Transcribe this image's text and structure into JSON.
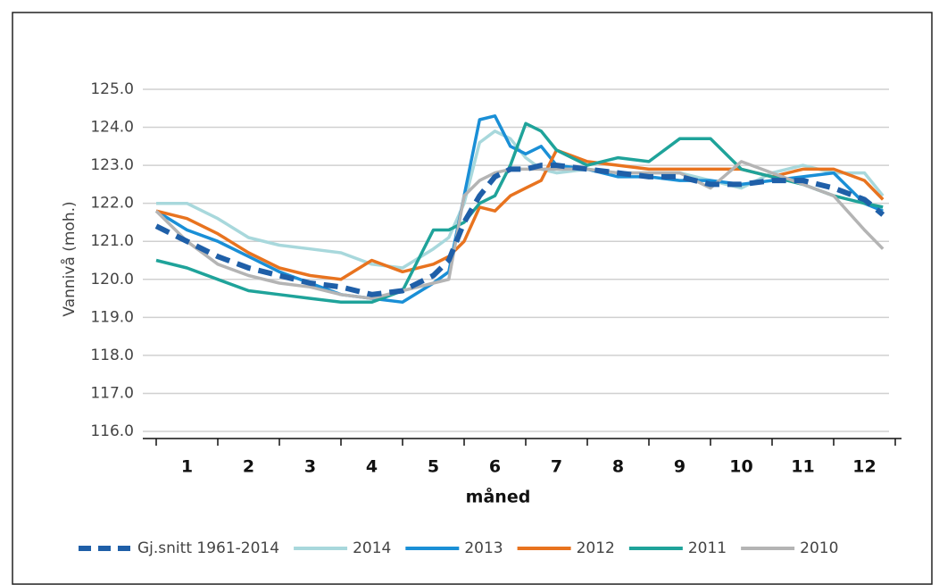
{
  "chart_data": {
    "type": "line",
    "ylabel": "Vannivå (moh.)",
    "xlabel": "måned",
    "x": [
      0.5,
      1,
      1.5,
      2,
      2.5,
      3,
      3.5,
      4,
      4.5,
      5,
      5.25,
      5.5,
      5.75,
      6,
      6.25,
      6.5,
      6.75,
      7,
      7.5,
      8,
      8.5,
      9,
      9.5,
      10,
      10.5,
      11,
      11.5,
      12,
      12.3
    ],
    "series": [
      {
        "name": "Gj.snitt 1961-2014",
        "color": "#1f5fa8",
        "line_style": "dashed",
        "values": [
          121.4,
          121.0,
          120.6,
          120.3,
          120.1,
          119.9,
          119.8,
          119.6,
          119.7,
          120.1,
          120.5,
          121.5,
          122.2,
          122.7,
          122.9,
          122.9,
          123.0,
          123.0,
          122.9,
          122.8,
          122.7,
          122.7,
          122.5,
          122.5,
          122.6,
          122.6,
          122.4,
          122.1,
          121.7
        ]
      },
      {
        "name": "2014",
        "color": "#a8d8dc",
        "values": [
          122.0,
          122.0,
          121.6,
          121.1,
          120.9,
          120.8,
          120.7,
          120.4,
          120.3,
          120.8,
          121.1,
          122.0,
          123.6,
          123.9,
          123.7,
          123.2,
          122.9,
          122.8,
          122.9,
          122.8,
          122.8,
          122.8,
          122.6,
          122.4,
          122.8,
          123.0,
          122.8,
          122.8,
          122.2
        ]
      },
      {
        "name": "2013",
        "color": "#1a8fd6",
        "values": [
          121.8,
          121.3,
          121.0,
          120.6,
          120.2,
          119.9,
          119.6,
          119.5,
          119.4,
          119.9,
          120.2,
          122.2,
          124.2,
          124.3,
          123.5,
          123.3,
          123.5,
          123.0,
          122.9,
          122.7,
          122.7,
          122.6,
          122.6,
          122.5,
          122.6,
          122.7,
          122.8,
          122.0,
          121.8
        ]
      },
      {
        "name": "2012",
        "color": "#e8731f",
        "values": [
          121.8,
          121.6,
          121.2,
          120.7,
          120.3,
          120.1,
          120.0,
          120.5,
          120.2,
          120.4,
          120.6,
          121.0,
          121.9,
          121.8,
          122.2,
          122.4,
          122.6,
          123.4,
          123.1,
          123.0,
          122.9,
          122.9,
          122.9,
          122.9,
          122.7,
          122.9,
          122.9,
          122.6,
          122.1
        ]
      },
      {
        "name": "2011",
        "color": "#1fa39a",
        "values": [
          120.5,
          120.3,
          120.0,
          119.7,
          119.6,
          119.5,
          119.4,
          119.4,
          119.7,
          121.3,
          121.3,
          121.5,
          122.0,
          122.2,
          123.0,
          124.1,
          123.9,
          123.4,
          123.0,
          123.2,
          123.1,
          123.7,
          123.7,
          122.9,
          122.7,
          122.5,
          122.2,
          122.0,
          121.9
        ]
      },
      {
        "name": "2010",
        "color": "#b4b4b4",
        "values": [
          121.8,
          121.0,
          120.4,
          120.1,
          119.9,
          119.8,
          119.6,
          119.5,
          119.7,
          119.9,
          120.0,
          122.2,
          122.6,
          122.8,
          122.9,
          122.9,
          122.9,
          122.9,
          122.9,
          122.8,
          122.8,
          122.8,
          122.4,
          123.1,
          122.8,
          122.5,
          122.2,
          121.3,
          120.8
        ]
      }
    ],
    "xlim": [
      0.5,
      12.5
    ],
    "xticks": [
      1,
      2,
      3,
      4,
      5,
      6,
      7,
      8,
      9,
      10,
      11,
      12
    ],
    "ylim": [
      116,
      125
    ],
    "yticks": [
      {
        "value": 116,
        "label": "116.0"
      },
      {
        "value": 117,
        "label": "117.0"
      },
      {
        "value": 118,
        "label": "118.0"
      },
      {
        "value": 119,
        "label": "119.0"
      },
      {
        "value": 120,
        "label": "120.0"
      },
      {
        "value": 121,
        "label": "121.0"
      },
      {
        "value": 122,
        "label": "122.0"
      },
      {
        "value": 123,
        "label": "123.0"
      },
      {
        "value": 124,
        "label": "124.0"
      },
      {
        "value": 125,
        "label": "125.0"
      }
    ],
    "grid": true,
    "legend": "bottom"
  }
}
